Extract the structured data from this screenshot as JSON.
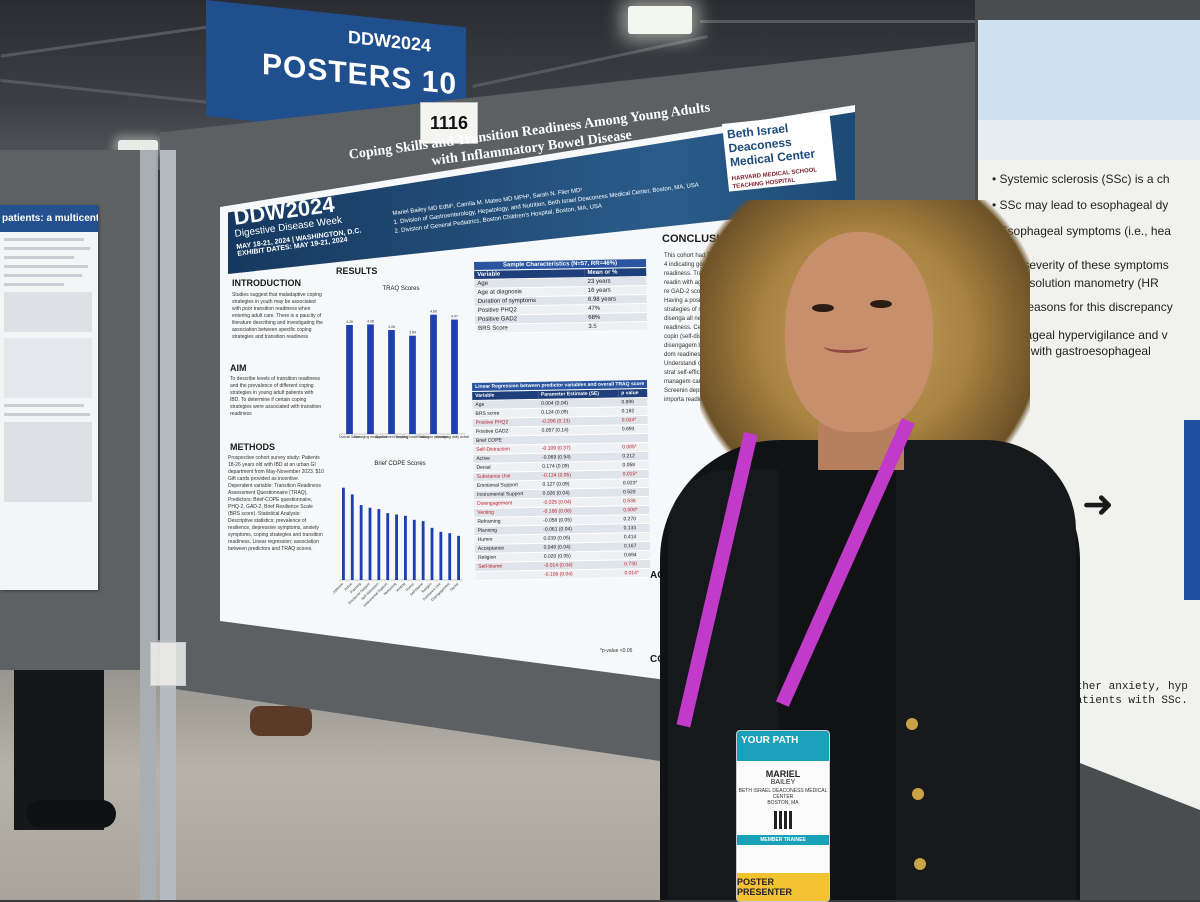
{
  "banner": {
    "logo": "DDW2024",
    "text": "POSTERS 10"
  },
  "board_number": "1116",
  "left_poster": {
    "title": "patients: a multicenter registry study"
  },
  "main_poster": {
    "conference": {
      "logo": "DDW2024",
      "subtitle": "Digestive Disease Week",
      "dates": "MAY 18-21, 2024 | WASHINGTON, D.C.",
      "exhibit": "EXHIBIT DATES: MAY 19-21, 2024"
    },
    "title": "Coping Skills and Transition Readiness Among Young Adults with Inflammatory Bowel Disease",
    "authors": "Mariel Bailey MD EdM¹, Camila M. Mateo MD MPH², Sarah N. Flier MD¹",
    "affiliation_1": "1. Division of Gastroenterology, Hepatology, and Nutrition, Beth Israel Deaconess Medical Center, Boston, MA, USA",
    "affiliation_2": "2. Division of General Pediatrics, Boston Children's Hospital, Boston, MA, USA",
    "hospital": {
      "name": "Beth Israel Deaconess Medical Center",
      "sub": "HARVARD MEDICAL SCHOOL TEACHING HOSPITAL"
    },
    "sections": {
      "intro": "INTRODUCTION",
      "intro_text": "Studies suggest that maladaptive coping strategies in youth may be associated with poor transition readiness when entering adult care. There is a paucity of literature describing and investigating the association between specific coping strategies and transition readiness",
      "aim": "AIM",
      "aim_text": "To describe levels of transition readiness and the prevalence of different coping strategies in young adult patients with IBD. To determine if certain coping strategies were associated with transition readiness",
      "methods": "METHODS",
      "methods_text": "Prospective cohort survey study: Patients 18-26 years old with IBD at an urban GI department from May-November 2023. $10 Gift cards provided as incentive. Dependent variable: Transition Readiness Assessment Questionnaire (TRAQ). Predictors: Brief-COPE questionnaire, PHQ-2, GAD-2, Brief Resilience Scale (BRS score). Statistical Analysis: Descriptive statistics; prevalence of resilience, depressive symptoms, anxiety symptoms, coping strategies and transition readiness. Linear regression; association between predictors and TRAQ scores.",
      "results": "RESULTS",
      "conclusions": "CONCLUSIONS",
      "conclusions_text": "This cohort had TRAQ 4 indicating good ove readiness. Transition readin with age, brief re GAD-2 score. Having a posit strategies of se use, disenga all negative readiness. Certain copin (self-distracti disengagem blame) dom readiness o Understandi coping strat self-efficac managem care. Screenin depress importa readine",
      "acknowledgements": "ACKNO",
      "contact": "CONT",
      "pvalue_note": "*p-value <0.05"
    },
    "table1": {
      "caption": "Sample Characteristics (N=57, RR=46%)",
      "headers": [
        "Variable",
        "Mean or %"
      ],
      "rows": [
        [
          "Age",
          "23 years"
        ],
        [
          "Age at diagnosis",
          "16 years"
        ],
        [
          "Duration of symptoms",
          "6.98 years"
        ],
        [
          "Positive PHQ2",
          "47%"
        ],
        [
          "Positive GAD2",
          "68%"
        ],
        [
          "BRS Score",
          "3.5"
        ]
      ]
    },
    "table2": {
      "caption": "Linear Regression between predictor variables and overall TRAQ score",
      "headers": [
        "Variable",
        "Parameter Estimate (SE)",
        "p value"
      ],
      "rows": [
        [
          "Age",
          "0.004 (0.04)",
          "0.898",
          false
        ],
        [
          "BRS score",
          "0.124 (0.09)",
          "0.182",
          false
        ],
        [
          "Positive PHQ2",
          "-0.296 (0.13)",
          "0.024*",
          true
        ],
        [
          "Positive GAD2",
          "0.057 (0.14)",
          "0.693",
          false
        ],
        [
          "Brief COPE",
          "",
          "",
          false
        ],
        [
          "Self-Distraction",
          "-0.109 (0.37)",
          "0.005*",
          true
        ],
        [
          "Active",
          "-0.069 (0.54)",
          "0.212",
          false
        ],
        [
          "Denial",
          "0.174 (0.09)",
          "0.058",
          false
        ],
        [
          "Substance Use",
          "-0.124 (0.05)",
          "0.015*",
          true
        ],
        [
          "Emotional Support",
          "0.127 (0.09)",
          "0.023*",
          false
        ],
        [
          "Instrumental Support",
          "0.026 (0.04)",
          "0.520",
          false
        ],
        [
          "Disengagement",
          "-0.025 (0.04)",
          "0.538",
          true
        ],
        [
          "Venting",
          "-0.166 (0.06)",
          "0.008*",
          true
        ],
        [
          "Reframing",
          "-0.058 (0.05)",
          "0.270",
          false
        ],
        [
          "Planning",
          "-0.061 (0.04)",
          "0.133",
          false
        ],
        [
          "Humor",
          "0.039 (0.05)",
          "0.414",
          false
        ],
        [
          "Acceptance",
          "0.049 (0.04)",
          "0.167",
          false
        ],
        [
          "Religion",
          "0.020 (0.05)",
          "0.694",
          false
        ],
        [
          "Self-blame",
          "-0.014 (0.04)",
          "0.730",
          true
        ],
        [
          "",
          "-0.108 (0.04)",
          "0.014*",
          true
        ]
      ]
    }
  },
  "chart_data": [
    {
      "type": "bar",
      "title": "TRAQ Scores",
      "categories": [
        "Overall Score",
        "Managing medication",
        "Appointment keeping",
        "Tracking health issues",
        "Talking to providers",
        "Managing daily activities"
      ],
      "values": [
        4.26,
        4.28,
        4.06,
        3.84,
        4.66,
        4.47
      ],
      "color": "#1f3fb0",
      "ylim": [
        0,
        5
      ]
    },
    {
      "type": "bar",
      "title": "Brief COPE Scores",
      "categories": [
        "Acceptance",
        "Active",
        "Planning",
        "Emotional Support",
        "Self-distraction",
        "Instrumental Support",
        "Reframing",
        "Venting",
        "Humor",
        "Self-blame",
        "Religion",
        "Substance Use",
        "Disengagement",
        "Denial"
      ],
      "values": [
        6.9,
        6.4,
        5.6,
        5.4,
        5.3,
        5.0,
        4.9,
        4.8,
        4.5,
        4.4,
        3.9,
        3.6,
        3.5,
        3.3
      ],
      "color": "#1f3fb0",
      "ylim": [
        0,
        8
      ]
    }
  ],
  "right_poster": {
    "bullets": [
      "Systemic sclerosis (SSc) is a ch",
      "SSc may lead to esophageal dy",
      "Esophageal symptoms (i.e., hea",
      "The severity of these symptoms",
      "high-resolution manometry (HR",
      "The reasons for this discrepancy",
      "sophageal hypervigilance and v",
      "atients with gastroesophageal"
    ],
    "bottom_1": "te whether anxiety, hyp",
    "bottom_2": "s in patients with SSc."
  },
  "badge": {
    "program": "YOUR PATH",
    "first_name": "MARIEL",
    "last_name": "BAILEY",
    "org": "BETH ISRAEL DEACONESS MEDICAL CENTER",
    "city": "BOSTON, MA",
    "role": "MEMBER TRAINEE",
    "ribbon": "POSTER PRESENTER"
  }
}
